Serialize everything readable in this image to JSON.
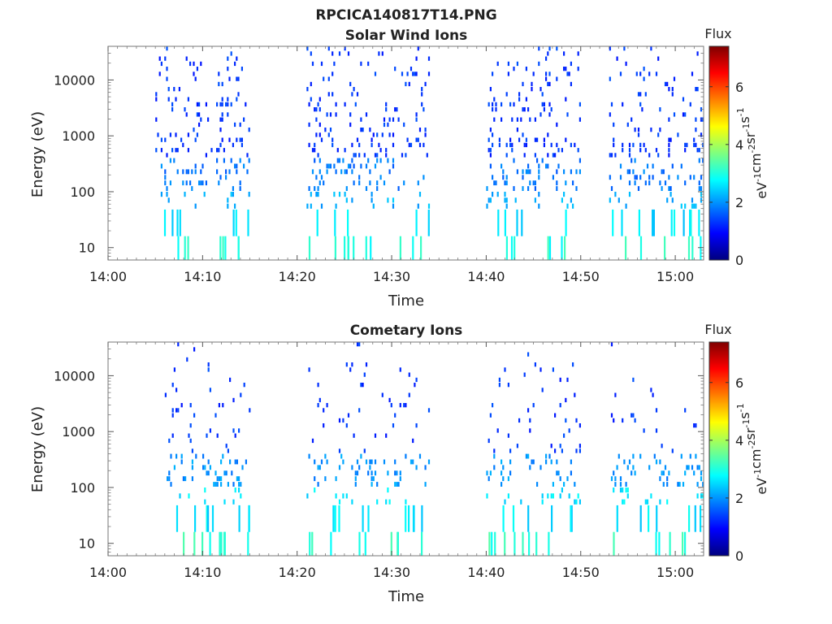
{
  "figure": {
    "title": "RPCICA140817T14.PNG"
  },
  "colormap": {
    "name": "jet",
    "stops": [
      "#00007f",
      "#0000ff",
      "#007fff",
      "#00ffff",
      "#7fff7f",
      "#ffff00",
      "#ff7f00",
      "#ff0000",
      "#7f0000"
    ]
  },
  "chart_data": [
    {
      "type": "heatmap",
      "title": "Solar Wind Ions",
      "xlabel": "Time",
      "ylabel": "Energy (eV)",
      "xlim": [
        "14:00",
        "15:03"
      ],
      "ylim": [
        6,
        40000
      ],
      "yscale": "log",
      "xticks": [
        "14:00",
        "14:10",
        "14:20",
        "14:30",
        "14:40",
        "14:50",
        "15:00"
      ],
      "yticks": [
        10,
        100,
        1000,
        10000
      ],
      "grid": false,
      "colorbar": {
        "title": "Flux",
        "label": "eV-1cm-2sr-1s-1",
        "ticks": [
          0,
          2,
          4,
          6
        ],
        "range": [
          0,
          7.4
        ]
      },
      "active_intervals": [
        [
          "14:05",
          "14:15"
        ],
        [
          "14:21",
          "14:34"
        ],
        [
          "14:40",
          "14:50"
        ],
        [
          "14:53",
          "15:03"
        ]
      ],
      "flux_bands": [
        {
          "energy": [
            6,
            16
          ],
          "flux": 3.0
        },
        {
          "energy": [
            16,
            48
          ],
          "flux": 2.6
        },
        {
          "energy": [
            48,
            100
          ],
          "flux": 2.2
        },
        {
          "energy": [
            100,
            400
          ],
          "flux": 1.8
        },
        {
          "energy": [
            400,
            40000
          ],
          "flux": 1.3
        }
      ]
    },
    {
      "type": "heatmap",
      "title": "Cometary Ions",
      "xlabel": "Time",
      "ylabel": "Energy (eV)",
      "xlim": [
        "14:00",
        "15:03"
      ],
      "ylim": [
        6,
        40000
      ],
      "yscale": "log",
      "xticks": [
        "14:00",
        "14:10",
        "14:20",
        "14:30",
        "14:40",
        "14:50",
        "15:00"
      ],
      "yticks": [
        10,
        100,
        1000,
        10000
      ],
      "grid": false,
      "colorbar": {
        "title": "Flux",
        "label": "eV-1cm-2sr-1s-1",
        "ticks": [
          0,
          2,
          4,
          6
        ],
        "range": [
          0,
          7.4
        ]
      },
      "active_intervals": [
        [
          "14:06",
          "14:15"
        ],
        [
          "14:21",
          "14:34"
        ],
        [
          "14:40",
          "14:50"
        ],
        [
          "14:53",
          "15:03"
        ]
      ],
      "flux_bands": [
        {
          "energy": [
            6,
            16
          ],
          "flux": 3.1
        },
        {
          "energy": [
            16,
            48
          ],
          "flux": 2.6
        },
        {
          "energy": [
            48,
            100
          ],
          "flux": 2.6
        },
        {
          "energy": [
            100,
            400
          ],
          "flux": 2.0
        },
        {
          "energy": [
            400,
            40000
          ],
          "flux": 1.3
        }
      ]
    }
  ]
}
